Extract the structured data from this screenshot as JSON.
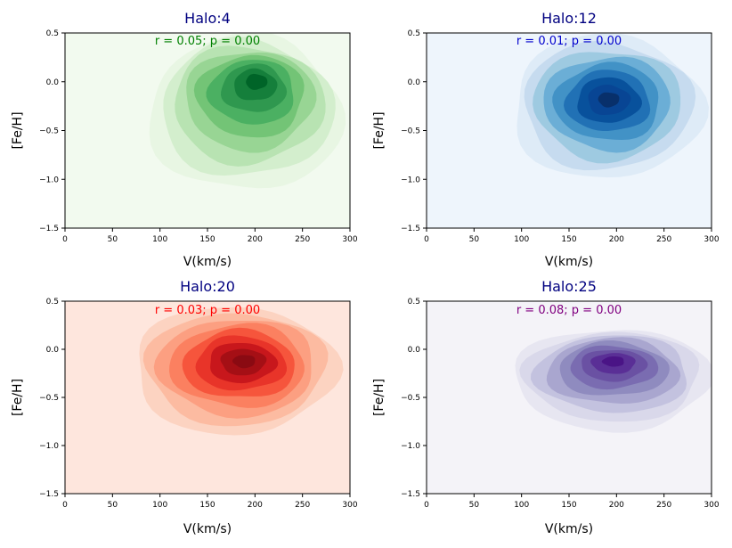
{
  "chart_data": [
    {
      "type": "contour",
      "title": "Halo:4",
      "annotation": "r = 0.05; p = 0.00",
      "annotation_color": "#008000",
      "xlabel": "V(km/s)",
      "ylabel": "[Fe/H]",
      "xlim": [
        0,
        300
      ],
      "ylim": [
        -1.5,
        0.5
      ],
      "xticks": [
        "0",
        "50",
        "100",
        "150",
        "200",
        "250",
        "300"
      ],
      "yticks": [
        "0.5",
        "0.0",
        "−0.5",
        "−1.0",
        "−1.5"
      ],
      "colormap": "Greens",
      "background": "#f2faef",
      "levels": [
        "#e8f6e3",
        "#d3eecd",
        "#b8e3b2",
        "#98d594",
        "#73c476",
        "#4bb062",
        "#2f984f",
        "#157f3b",
        "#006428"
      ],
      "density_peak": {
        "v": 203,
        "feh": 0.03
      },
      "density_extent": {
        "v": [
          88,
          292
        ],
        "feh": [
          -1.12,
          0.47
        ]
      }
    },
    {
      "type": "contour",
      "title": "Halo:12",
      "annotation": "r = 0.01; p = 0.00",
      "annotation_color": "#0000cd",
      "xlabel": "V(km/s)",
      "ylabel": "[Fe/H]",
      "xlim": [
        0,
        300
      ],
      "ylim": [
        -1.5,
        0.5
      ],
      "xticks": [
        "0",
        "50",
        "100",
        "150",
        "200",
        "250",
        "300"
      ],
      "yticks": [
        "0.5",
        "0.0",
        "−0.5",
        "−1.0",
        "−1.5"
      ],
      "colormap": "Blues",
      "background": "#eef5fc",
      "levels": [
        "#deebf7",
        "#c6dbef",
        "#9ecae1",
        "#6baed6",
        "#4292c6",
        "#2171b5",
        "#08519c",
        "#084594",
        "#08306b"
      ],
      "density_peak": {
        "v": 192,
        "feh": -0.18
      },
      "density_extent": {
        "v": [
          90,
          290
        ],
        "feh": [
          -1.0,
          0.48
        ]
      }
    },
    {
      "type": "contour",
      "title": "Halo:20",
      "annotation": "r = 0.03; p = 0.00",
      "annotation_color": "#ff0000",
      "xlabel": "V(km/s)",
      "ylabel": "[Fe/H]",
      "xlim": [
        0,
        300
      ],
      "ylim": [
        -1.5,
        0.5
      ],
      "xticks": [
        "0",
        "50",
        "100",
        "150",
        "200",
        "250",
        "300"
      ],
      "yticks": [
        "0.5",
        "0.0",
        "−0.5",
        "−1.0",
        "−1.5"
      ],
      "colormap": "Reds",
      "background": "#fee6dd",
      "levels": [
        "#fcd3c1",
        "#fcbba1",
        "#fc9f81",
        "#fb8060",
        "#f6553c",
        "#e83429",
        "#c8171c",
        "#a50f15",
        "#8a0a12"
      ],
      "density_peak": {
        "v": 190,
        "feh": -0.12
      },
      "density_extent": {
        "v": [
          72,
          285
        ],
        "feh": [
          -0.88,
          0.45
        ]
      }
    },
    {
      "type": "contour",
      "title": "Halo:25",
      "annotation": "r = 0.08; p = 0.00",
      "annotation_color": "#800080",
      "xlabel": "V(km/s)",
      "ylabel": "[Fe/H]",
      "xlim": [
        0,
        300
      ],
      "ylim": [
        -1.5,
        0.5
      ],
      "xticks": [
        "0",
        "50",
        "100",
        "150",
        "200",
        "250",
        "300"
      ],
      "yticks": [
        "0.5",
        "0.0",
        "−0.5",
        "−1.0",
        "−1.5"
      ],
      "colormap": "Purples",
      "background": "#f4f3f8",
      "levels": [
        "#e7e6f1",
        "#d9d8ea",
        "#c3c2df",
        "#a9a6cf",
        "#8f8bbf",
        "#7a6cb1",
        "#6a51a3",
        "#5a2f96",
        "#4a1486"
      ],
      "density_peak": {
        "v": 197,
        "feh": -0.11
      },
      "density_extent": {
        "v": [
          92,
          300
        ],
        "feh": [
          -0.84,
          0.22
        ]
      }
    }
  ]
}
